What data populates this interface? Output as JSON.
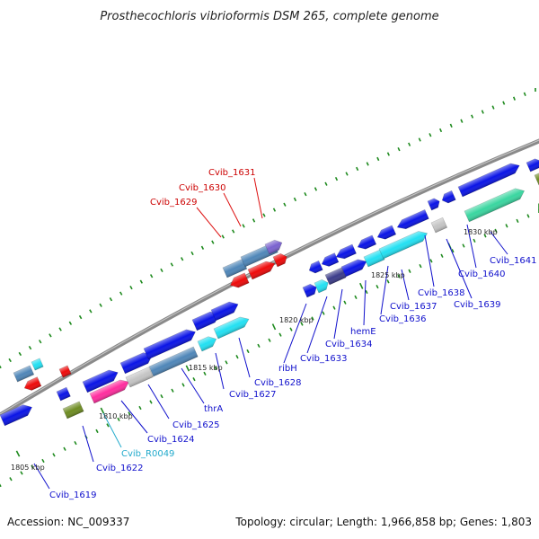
{
  "title": "Prosthecochloris vibrioformis DSM 265, complete genome",
  "footer": {
    "accession": "Accession: NC_009337",
    "topology": "Topology: circular; Length: 1,966,858 bp; Genes: 1,803"
  },
  "colors": {
    "backbone": "#7f7f7f",
    "gene_blue": "#0a14e6",
    "gene_steel": "#4f86b8",
    "gene_cyan": "#23e0f2",
    "gene_red": "#ee0a0a",
    "gene_magenta": "#ff2d9e",
    "gene_grey": "#c4c4c4",
    "gene_violet": "#7a62cf",
    "gene_olive": "#6e8c22",
    "gene_teal": "#3ad6a0",
    "gene_darkslate": "#3c3c8a",
    "tick_green": "#1e8a1e",
    "label_red": "#cc0000",
    "label_blue": "#1010cc",
    "label_cyan": "#22aacc"
  },
  "scale_labels": [
    "1805 kbp",
    "1810 kbp",
    "1815 kbp",
    "1820 kbp",
    "1825 kbp",
    "1830 kbp"
  ],
  "gene_labels": [
    {
      "text": "Cvib_1631",
      "color": "label_red"
    },
    {
      "text": "Cvib_1630",
      "color": "label_red"
    },
    {
      "text": "Cvib_1629",
      "color": "label_red"
    },
    {
      "text": "Cvib_1641",
      "color": "label_blue"
    },
    {
      "text": "Cvib_1640",
      "color": "label_blue"
    },
    {
      "text": "Cvib_1638",
      "color": "label_blue"
    },
    {
      "text": "Cvib_1639",
      "color": "label_blue"
    },
    {
      "text": "Cvib_1637",
      "color": "label_blue"
    },
    {
      "text": "Cvib_1636",
      "color": "label_blue"
    },
    {
      "text": "hemE",
      "color": "label_blue"
    },
    {
      "text": "Cvib_1634",
      "color": "label_blue"
    },
    {
      "text": "Cvib_1633",
      "color": "label_blue"
    },
    {
      "text": "ribH",
      "color": "label_blue"
    },
    {
      "text": "Cvib_1628",
      "color": "label_blue"
    },
    {
      "text": "Cvib_1627",
      "color": "label_blue"
    },
    {
      "text": "thrA",
      "color": "label_blue"
    },
    {
      "text": "Cvib_1625",
      "color": "label_blue"
    },
    {
      "text": "Cvib_1624",
      "color": "label_blue"
    },
    {
      "text": "Cvib_R0049",
      "color": "label_cyan"
    },
    {
      "text": "Cvib_1622",
      "color": "label_blue"
    },
    {
      "text": "Cvib_1619",
      "color": "label_blue"
    }
  ]
}
